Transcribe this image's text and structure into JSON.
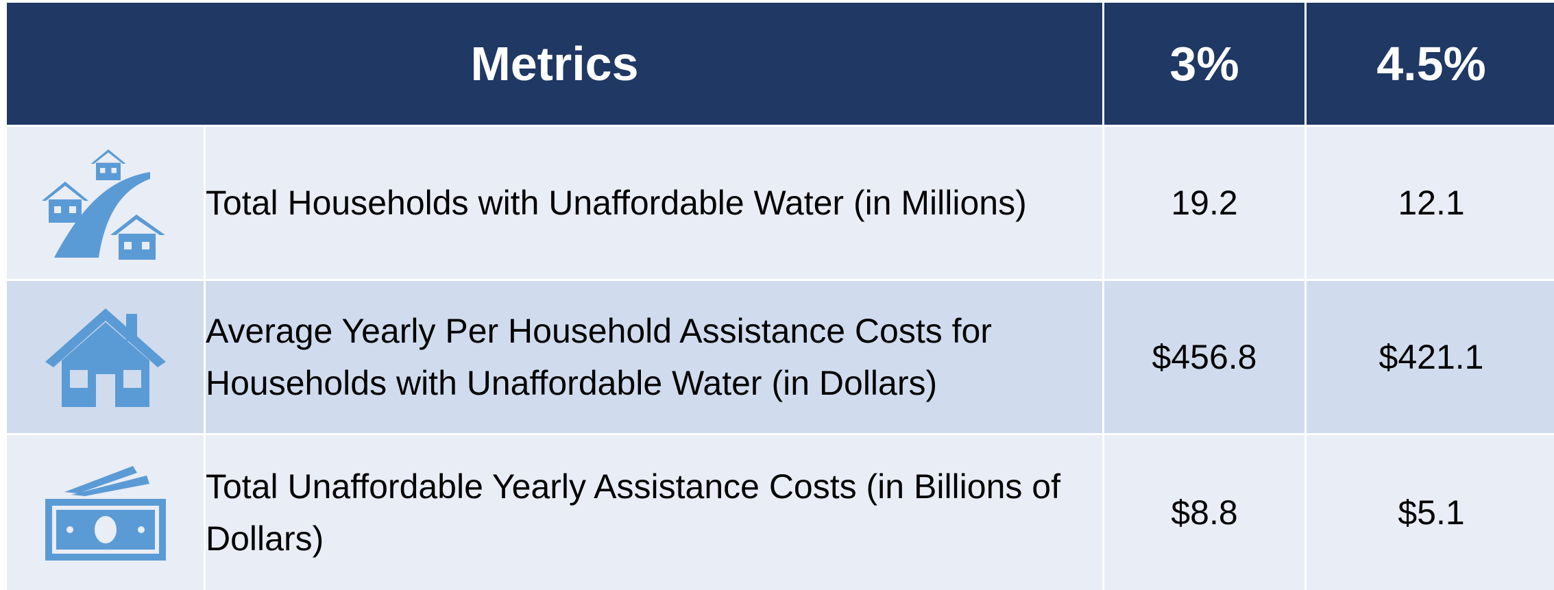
{
  "header": {
    "columns": [
      "Metrics",
      "3%",
      "4.5%"
    ]
  },
  "table": {
    "rows": [
      [
        "Total Households with Unaffordable Water (in Millions)",
        "19.2",
        "12.1"
      ],
      [
        "Average Yearly Per Household Assistance Costs for Households with Unaffordable Water (in Dollars)",
        "$456.8",
        "$421.1"
      ],
      [
        "Total Unaffordable Yearly Assistance Costs (in Billions of Dollars)",
        "$8.8",
        "$5.1"
      ]
    ]
  }
}
